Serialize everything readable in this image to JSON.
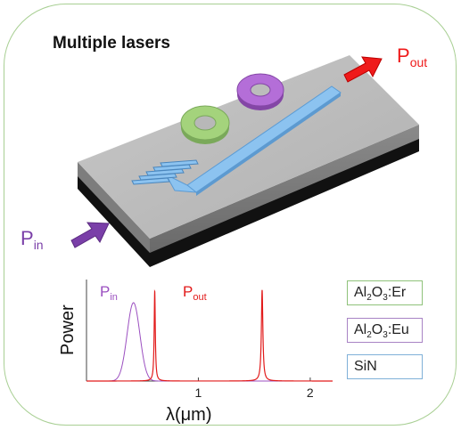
{
  "title": "Multiple lasers",
  "labels": {
    "p_out_main": "P",
    "p_out_main_sub": "out",
    "p_in_main": "P",
    "p_in_main_sub": "in"
  },
  "legend": {
    "items": [
      {
        "text_main": "Al",
        "sub1": "2",
        "mid": "O",
        "sub2": "3",
        "suffix": ":Er",
        "color": "#8fc27a"
      },
      {
        "text_main": "Al",
        "sub1": "2",
        "mid": "O",
        "sub2": "3",
        "suffix": ":Eu",
        "color": "#a883c4"
      },
      {
        "text_main": "SiN",
        "color": "#7fb0d8"
      }
    ]
  },
  "colors": {
    "ring_er": "#a4d37c",
    "ring_eu": "#b46ed8",
    "waveguide": "#7fb8ea",
    "arrow_out": "#ef1a1a",
    "arrow_in": "#7a3fa8",
    "pump_curve": "#9b4fc0",
    "laser_curve": "#e21b1b"
  },
  "chart_data": {
    "type": "line",
    "xlabel": "λ(μm)",
    "ylabel": "Power",
    "xticks": [
      1,
      2
    ],
    "xlim": [
      0.0,
      2.2
    ],
    "annotations": [
      {
        "text": "P",
        "sub": "in",
        "color": "#9b4fc0"
      },
      {
        "text": "P",
        "sub": "out",
        "color": "#e21b1b"
      }
    ],
    "series": [
      {
        "name": "P_in",
        "color": "#9b4fc0",
        "shape": "gaussian",
        "center": 0.42,
        "width": 0.08,
        "peak": 0.8
      },
      {
        "name": "P_out",
        "color": "#e21b1b",
        "shape": "lines",
        "peaks": [
          {
            "center": 0.61,
            "width": 0.006,
            "peak": 0.92
          },
          {
            "center": 1.57,
            "width": 0.008,
            "peak": 0.93
          }
        ]
      }
    ]
  }
}
